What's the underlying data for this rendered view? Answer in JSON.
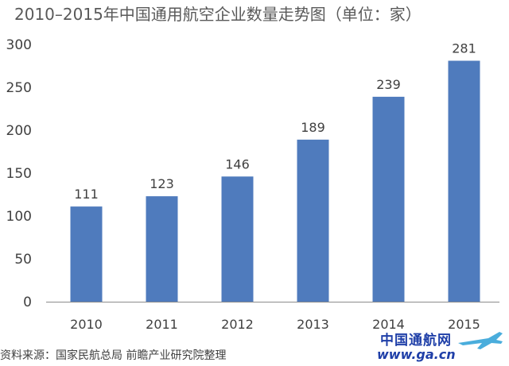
{
  "title": "2010–2015年中国通用航空企业数量走势图（单位：家）",
  "source": "资料来源：国家民航总局 前瞻产业研究院整理",
  "watermark": {
    "name": "中国通航网",
    "url": "www.ga.cn"
  },
  "colors": {
    "bar": "#4f7bbd",
    "axis": "#8c8c8c",
    "text": "#404040"
  },
  "chart_data": {
    "type": "bar",
    "categories": [
      "2010",
      "2011",
      "2012",
      "2013",
      "2014",
      "2015"
    ],
    "values": [
      111,
      123,
      146,
      189,
      239,
      281
    ],
    "ylim": [
      0,
      300
    ],
    "yticks": [
      0,
      50,
      100,
      150,
      200,
      250,
      300
    ],
    "grid": false,
    "data_labels": true
  }
}
